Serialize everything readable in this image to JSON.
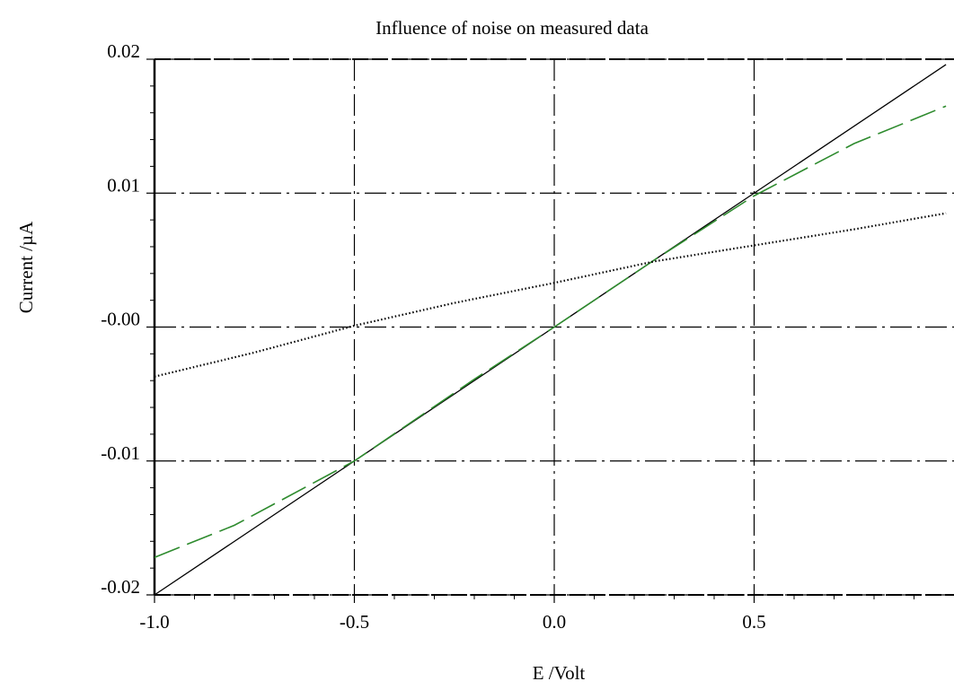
{
  "chart_data": {
    "type": "line",
    "title": "Influence of noise on measured data",
    "xlabel": "E /Volt",
    "ylabel": "Current /µA",
    "xlim": [
      -1.0,
      1.0
    ],
    "ylim": [
      -0.02,
      0.02
    ],
    "x_ticks": [
      -1.0,
      -0.5,
      0.0,
      0.5
    ],
    "x_tick_labels": [
      "-1.0",
      "-0.5",
      "0.0",
      "0.5"
    ],
    "y_ticks": [
      0.02,
      0.01,
      0.0,
      -0.01,
      -0.02
    ],
    "y_tick_labels": [
      "0.02",
      "0.01",
      "-0.00",
      "-0.01",
      "-0.02"
    ],
    "grid": true,
    "legend": "none",
    "series": [
      {
        "style": "solid",
        "color": "#000000",
        "x": [
          -1.0,
          -0.5,
          0.0,
          0.5,
          0.98
        ],
        "y": [
          -0.02,
          -0.01,
          0.0,
          0.01,
          0.0196
        ]
      },
      {
        "style": "long-dash",
        "color": "#2e8b2e",
        "x": [
          -1.0,
          -0.8,
          -0.5,
          -0.2,
          0.0,
          0.25,
          0.5,
          0.75,
          0.98
        ],
        "y": [
          -0.0172,
          -0.0148,
          -0.01,
          -0.0039,
          0.0,
          0.005,
          0.0098,
          0.0137,
          0.0165
        ]
      },
      {
        "style": "dotted",
        "color": "#000000",
        "x": [
          -1.0,
          -0.75,
          -0.5,
          -0.25,
          0.0,
          0.25,
          0.5,
          0.75,
          0.98
        ],
        "y": [
          -0.0037,
          -0.0019,
          0.0001,
          0.0018,
          0.0033,
          0.0049,
          0.0061,
          0.0073,
          0.0085
        ]
      }
    ]
  }
}
